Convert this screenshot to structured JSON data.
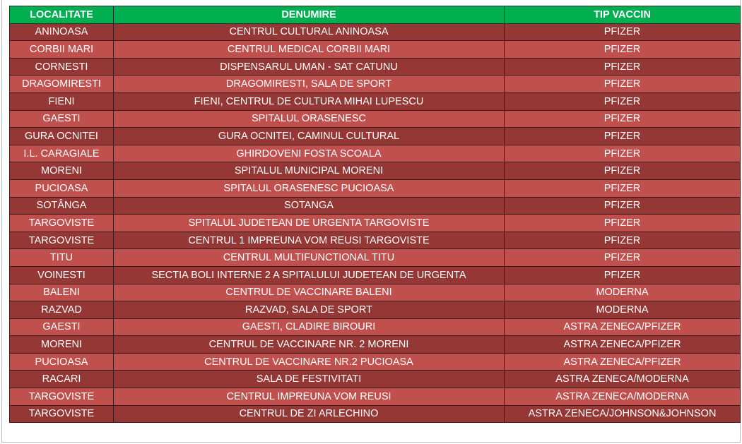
{
  "table": {
    "header": [
      "LOCALITATE",
      "DENUMIRE",
      "TIP VACCIN"
    ],
    "rows": [
      [
        "ANINOASA",
        "CENTRUL CULTURAL ANINOASA",
        "PFIZER"
      ],
      [
        "CORBII MARI",
        "CENTRUL MEDICAL CORBII MARI",
        "PFIZER"
      ],
      [
        "CORNESTI",
        "DISPENSARUL UMAN - SAT CATUNU",
        "PFIZER"
      ],
      [
        "DRAGOMIRESTI",
        "DRAGOMIRESTI, SALA DE SPORT",
        "PFIZER"
      ],
      [
        "FIENI",
        "FIENI, CENTRUL DE CULTURA MIHAI LUPESCU",
        "PFIZER"
      ],
      [
        "GAESTI",
        "SPITALUL ORASENESC",
        "PFIZER"
      ],
      [
        "GURA OCNITEI",
        "GURA OCNITEI, CAMINUL CULTURAL",
        "PFIZER"
      ],
      [
        "I.L. CARAGIALE",
        "GHIRDOVENI FOSTA SCOALA",
        "PFIZER"
      ],
      [
        "MORENI",
        "SPITALUL MUNICIPAL MORENI",
        "PFIZER"
      ],
      [
        "PUCIOASA",
        "SPITALUL ORASENESC PUCIOASA",
        "PFIZER"
      ],
      [
        "SOTÂNGA",
        "SOTANGA",
        "PFIZER"
      ],
      [
        "TARGOVISTE",
        "SPITALUL JUDETEAN DE URGENTA TARGOVISTE",
        "PFIZER"
      ],
      [
        "TARGOVISTE",
        "CENTRUL 1 IMPREUNA VOM REUSI TARGOVISTE",
        "PFIZER"
      ],
      [
        "TITU",
        "CENTRUL MULTIFUNCTIONAL TITU",
        "PFIZER"
      ],
      [
        "VOINESTI",
        "SECTIA BOLI INTERNE 2 A SPITALULUI JUDETEAN DE URGENTA",
        "PFIZER"
      ],
      [
        "BALENI",
        "CENTRUL DE VACCINARE BALENI",
        "MODERNA"
      ],
      [
        "RAZVAD",
        "RAZVAD, SALA DE SPORT",
        "MODERNA"
      ],
      [
        "GAESTI",
        "GAESTI, CLADIRE BIROURI",
        "ASTRA ZENECA/PFIZER"
      ],
      [
        "MORENI",
        "CENTRUL DE VACCINARE NR. 2 MORENI",
        "ASTRA ZENECA/PFIZER"
      ],
      [
        "PUCIOASA",
        "CENTRUL DE VACCINARE NR.2 PUCIOASA",
        "ASTRA ZENECA/PFIZER"
      ],
      [
        "RACARI",
        "SALA DE FESTIVITATI",
        "ASTRA ZENECA/MODERNA"
      ],
      [
        "TARGOVISTE",
        "CENTRUL IMPREUNA VOM REUSI",
        "ASTRA ZENECA/MODERNA"
      ],
      [
        "TARGOVISTE",
        "CENTRUL DE ZI ARLECHINO",
        "ASTRA ZENECA/JOHNSON&JOHNSON"
      ]
    ]
  }
}
